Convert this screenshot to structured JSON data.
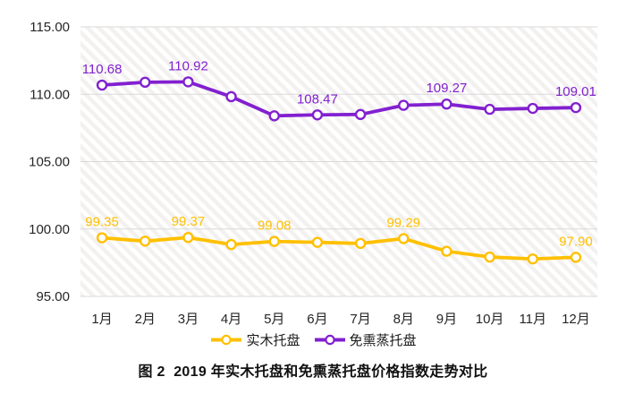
{
  "chart_data": {
    "type": "line",
    "title": "",
    "categories": [
      "1月",
      "2月",
      "3月",
      "4月",
      "5月",
      "6月",
      "7月",
      "8月",
      "9月",
      "10月",
      "11月",
      "12月"
    ],
    "series": [
      {
        "name": "实木托盘",
        "key": "solid-wood",
        "color": "#FFC000",
        "values": [
          99.35,
          99.1,
          99.37,
          98.85,
          99.08,
          99.01,
          98.93,
          99.29,
          98.35,
          97.92,
          97.78,
          97.9
        ],
        "point_labels": [
          "99.35",
          null,
          "99.37",
          null,
          "99.08",
          null,
          null,
          "99.29",
          null,
          null,
          null,
          "97.90"
        ]
      },
      {
        "name": "免熏蒸托盘",
        "key": "fumigation-free",
        "color": "#8220D0",
        "values": [
          110.68,
          110.89,
          110.92,
          109.82,
          108.4,
          108.47,
          108.5,
          109.18,
          109.27,
          108.88,
          108.95,
          109.01
        ],
        "point_labels": [
          "110.68",
          null,
          "110.92",
          null,
          null,
          "108.47",
          null,
          null,
          "109.27",
          null,
          null,
          "109.01"
        ]
      }
    ],
    "yaxis": {
      "min": 95,
      "max": 115,
      "step": 5,
      "tick_labels": [
        "95.00",
        "100.00",
        "105.00",
        "110.00",
        "115.00"
      ]
    },
    "grid": "horizontal",
    "legend_position": "bottom",
    "plot_background": "diagonal-hatch"
  },
  "caption": {
    "text": "图 2  2019 年实木托盘和免熏蒸托盘价格指数走势对比"
  },
  "colors": {
    "grid": "#d9d9d9",
    "axis_text": "#262626",
    "hatch_stripe": "#f3f1ef",
    "background": "#ffffff"
  }
}
